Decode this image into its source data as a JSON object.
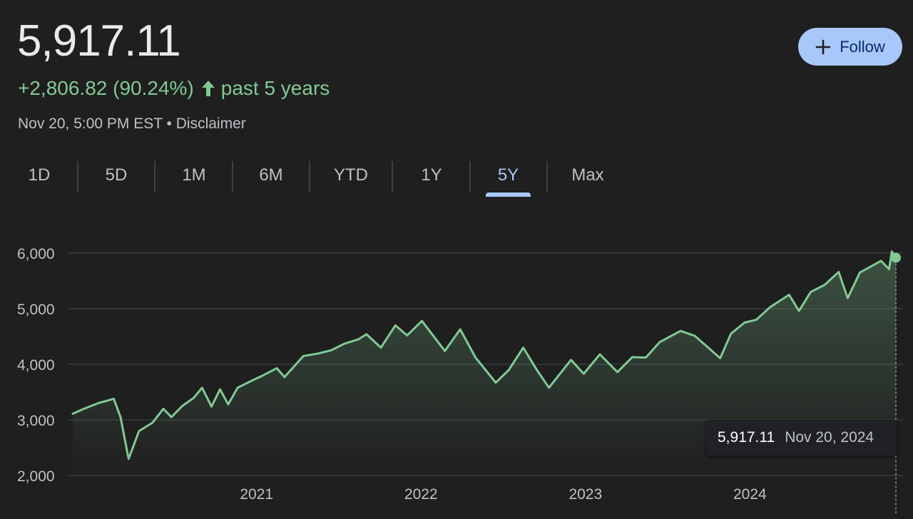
{
  "quote": {
    "price": "5,917.11",
    "change": "+2,806.82 (90.24%)",
    "period_label": "past 5 years",
    "timestamp": "Nov 20, 5:00 PM EST •",
    "disclaimer": "Disclaimer",
    "change_color": "#81c995"
  },
  "follow": {
    "label": "Follow",
    "icon": "plus-icon",
    "bg": "#a8c7fa"
  },
  "ranges": {
    "items": [
      "1D",
      "5D",
      "1M",
      "6M",
      "YTD",
      "1Y",
      "5Y",
      "Max"
    ],
    "selected": "5Y"
  },
  "tooltip": {
    "value": "5,917.11",
    "date": "Nov 20, 2024"
  },
  "chart_data": {
    "type": "area",
    "title": "",
    "xlabel": "",
    "ylabel": "",
    "ylim": [
      2000,
      6000
    ],
    "xlim": [
      "2019-11-20",
      "2024-11-20"
    ],
    "y_ticks": [
      2000,
      3000,
      4000,
      5000,
      6000
    ],
    "y_tick_labels": [
      "2,000",
      "3,000",
      "4,000",
      "5,000",
      "6,000"
    ],
    "x_ticks": [
      "2021-01-01",
      "2022-01-01",
      "2023-01-01",
      "2024-01-01"
    ],
    "x_tick_labels": [
      "2021",
      "2022",
      "2023",
      "2024"
    ],
    "grid": true,
    "line_color": "#81c995",
    "x": [
      "2019-11-20",
      "2019-12-15",
      "2020-01-15",
      "2020-02-19",
      "2020-03-05",
      "2020-03-23",
      "2020-04-15",
      "2020-05-15",
      "2020-06-08",
      "2020-06-26",
      "2020-07-20",
      "2020-08-15",
      "2020-09-02",
      "2020-09-23",
      "2020-10-12",
      "2020-10-30",
      "2020-11-20",
      "2020-12-20",
      "2021-01-15",
      "2021-02-15",
      "2021-03-04",
      "2021-04-15",
      "2021-05-15",
      "2021-06-15",
      "2021-07-15",
      "2021-08-15",
      "2021-09-02",
      "2021-10-04",
      "2021-11-05",
      "2021-12-01",
      "2022-01-03",
      "2022-02-23",
      "2022-03-29",
      "2022-05-02",
      "2022-06-16",
      "2022-07-15",
      "2022-08-16",
      "2022-09-15",
      "2022-10-12",
      "2022-11-30",
      "2022-12-28",
      "2023-02-02",
      "2023-03-13",
      "2023-04-15",
      "2023-05-15",
      "2023-06-15",
      "2023-07-31",
      "2023-09-01",
      "2023-10-27",
      "2023-11-20",
      "2023-12-20",
      "2024-01-15",
      "2024-02-15",
      "2024-03-28",
      "2024-04-19",
      "2024-05-15",
      "2024-06-15",
      "2024-07-16",
      "2024-08-05",
      "2024-09-01",
      "2024-10-18",
      "2024-11-05",
      "2024-11-11",
      "2024-11-20"
    ],
    "values": [
      3110,
      3200,
      3300,
      3380,
      3050,
      2300,
      2800,
      2950,
      3200,
      3050,
      3250,
      3400,
      3580,
      3240,
      3550,
      3280,
      3580,
      3700,
      3800,
      3930,
      3770,
      4150,
      4190,
      4250,
      4370,
      4450,
      4540,
      4300,
      4700,
      4520,
      4780,
      4240,
      4630,
      4120,
      3670,
      3900,
      4300,
      3900,
      3580,
      4080,
      3830,
      4180,
      3860,
      4130,
      4120,
      4400,
      4600,
      4510,
      4110,
      4550,
      4750,
      4800,
      5030,
      5250,
      4960,
      5300,
      5430,
      5660,
      5190,
      5650,
      5860,
      5710,
      6030,
      5917.11
    ]
  }
}
